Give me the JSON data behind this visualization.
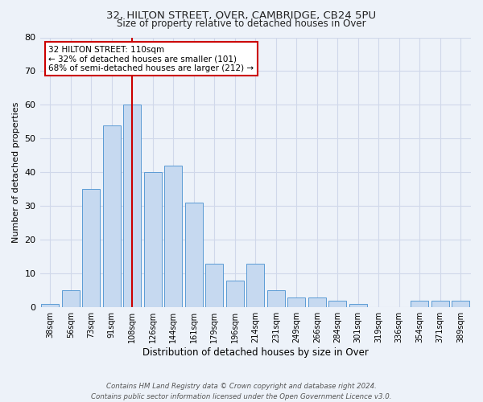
{
  "title": "32, HILTON STREET, OVER, CAMBRIDGE, CB24 5PU",
  "subtitle": "Size of property relative to detached houses in Over",
  "xlabel": "Distribution of detached houses by size in Over",
  "ylabel": "Number of detached properties",
  "categories": [
    "38sqm",
    "56sqm",
    "73sqm",
    "91sqm",
    "108sqm",
    "126sqm",
    "144sqm",
    "161sqm",
    "179sqm",
    "196sqm",
    "214sqm",
    "231sqm",
    "249sqm",
    "266sqm",
    "284sqm",
    "301sqm",
    "319sqm",
    "336sqm",
    "354sqm",
    "371sqm",
    "389sqm"
  ],
  "bar_heights": [
    1,
    5,
    35,
    54,
    60,
    40,
    42,
    31,
    13,
    8,
    13,
    5,
    3,
    3,
    2,
    1,
    0,
    0,
    2,
    2,
    2
  ],
  "bar_color": "#c6d9f0",
  "bar_edge_color": "#5b9bd5",
  "bar_edge_width": 0.7,
  "vline_x_index": 4,
  "vline_color": "#cc0000",
  "annotation_title": "32 HILTON STREET: 110sqm",
  "annotation_line1": "← 32% of detached houses are smaller (101)",
  "annotation_line2": "68% of semi-detached houses are larger (212) →",
  "annotation_box_color": "#ffffff",
  "annotation_box_edge_color": "#cc0000",
  "ylim": [
    0,
    80
  ],
  "yticks": [
    0,
    10,
    20,
    30,
    40,
    50,
    60,
    70,
    80
  ],
  "grid_color": "#d0d8ea",
  "background_color": "#edf2f9",
  "footer1": "Contains HM Land Registry data © Crown copyright and database right 2024.",
  "footer2": "Contains public sector information licensed under the Open Government Licence v3.0."
}
